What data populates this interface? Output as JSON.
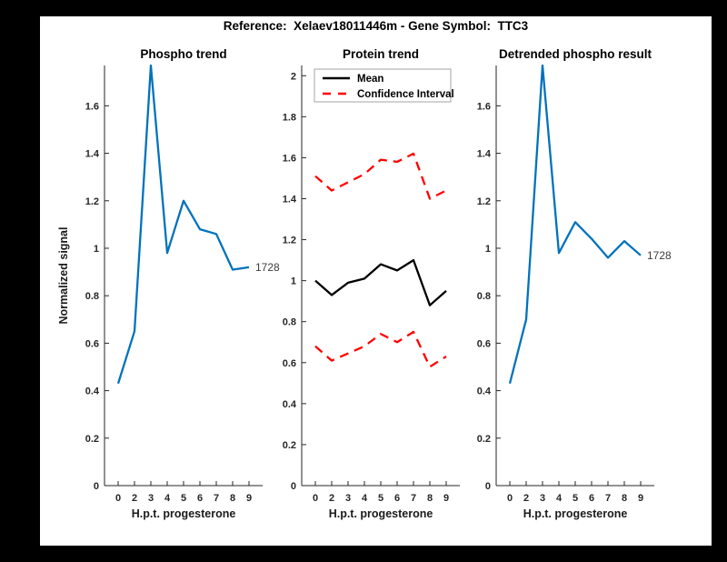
{
  "window": {
    "background": "#000000",
    "canvas_background": "#ffffff"
  },
  "header": {
    "title": "Reference:  Xelaev18011446m - Gene Symbol:  TTC3"
  },
  "palette": {
    "blue": "#0072bd",
    "red": "#ff0000",
    "black": "#000000",
    "axis": "#262626",
    "annotation": "#3c3c3c",
    "legend_border": "#a6a6a6"
  },
  "chart_data": [
    {
      "type": "line",
      "title": "Phospho trend",
      "xlabel": "H.p.t. progesterone",
      "ylabel": "Normalized signal",
      "grid": false,
      "x_ticklabels": [
        "0",
        "2",
        "3",
        "4",
        "5",
        "6",
        "7",
        "8",
        "9"
      ],
      "y_ticklabels": [
        "0",
        "0.2",
        "0.4",
        "0.6",
        "0.8",
        "1",
        "1.2",
        "1.4",
        "1.6"
      ],
      "ylim": [
        0,
        1.77
      ],
      "legend": null,
      "series": [
        {
          "name": "phospho-signal",
          "color": "#0072bd",
          "style": "solid",
          "values": [
            0.43,
            0.65,
            1.77,
            0.98,
            1.2,
            1.08,
            1.06,
            0.91,
            0.92
          ],
          "end_label": "1728"
        }
      ]
    },
    {
      "type": "line",
      "title": "Protein trend",
      "xlabel": "H.p.t. progesterone",
      "ylabel": "",
      "grid": false,
      "x_ticklabels": [
        "0",
        "2",
        "3",
        "4",
        "5",
        "6",
        "7",
        "8",
        "9"
      ],
      "y_ticklabels": [
        "0",
        "0.2",
        "0.4",
        "0.6",
        "0.8",
        "1",
        "1.2",
        "1.4",
        "1.6",
        "1.8",
        "2"
      ],
      "ylim": [
        0,
        2.05
      ],
      "legend": {
        "position": "top-left",
        "entries": [
          {
            "label": "Mean",
            "color": "#000000",
            "style": "solid"
          },
          {
            "label": "Confidence Interval",
            "color": "#ff0000",
            "style": "dashed"
          }
        ]
      },
      "series": [
        {
          "name": "protein-mean",
          "color": "#000000",
          "style": "solid",
          "values": [
            1.0,
            0.93,
            0.99,
            1.01,
            1.08,
            1.05,
            1.1,
            0.88,
            0.95
          ],
          "end_label": null
        },
        {
          "name": "confidence-interval-upper",
          "color": "#ff0000",
          "style": "dashed",
          "values": [
            1.51,
            1.44,
            1.48,
            1.52,
            1.59,
            1.58,
            1.62,
            1.4,
            1.44
          ],
          "end_label": null
        },
        {
          "name": "confidence-interval-lower",
          "color": "#ff0000",
          "style": "dashed",
          "values": [
            0.68,
            0.61,
            0.645,
            0.68,
            0.74,
            0.7,
            0.75,
            0.58,
            0.63
          ],
          "end_label": null
        }
      ]
    },
    {
      "type": "line",
      "title": "Detrended phospho result",
      "xlabel": "H.p.t. progesterone",
      "ylabel": "",
      "grid": false,
      "x_ticklabels": [
        "0",
        "2",
        "3",
        "4",
        "5",
        "6",
        "7",
        "8",
        "9"
      ],
      "y_ticklabels": [
        "0",
        "0.2",
        "0.4",
        "0.6",
        "0.8",
        "1",
        "1.2",
        "1.4",
        "1.6"
      ],
      "ylim": [
        0,
        1.77
      ],
      "legend": null,
      "series": [
        {
          "name": "detrended-phospho",
          "color": "#0072bd",
          "style": "solid",
          "values": [
            0.43,
            0.7,
            1.77,
            0.98,
            1.11,
            1.04,
            0.96,
            1.03,
            0.97
          ],
          "end_label": "1728"
        }
      ]
    }
  ]
}
